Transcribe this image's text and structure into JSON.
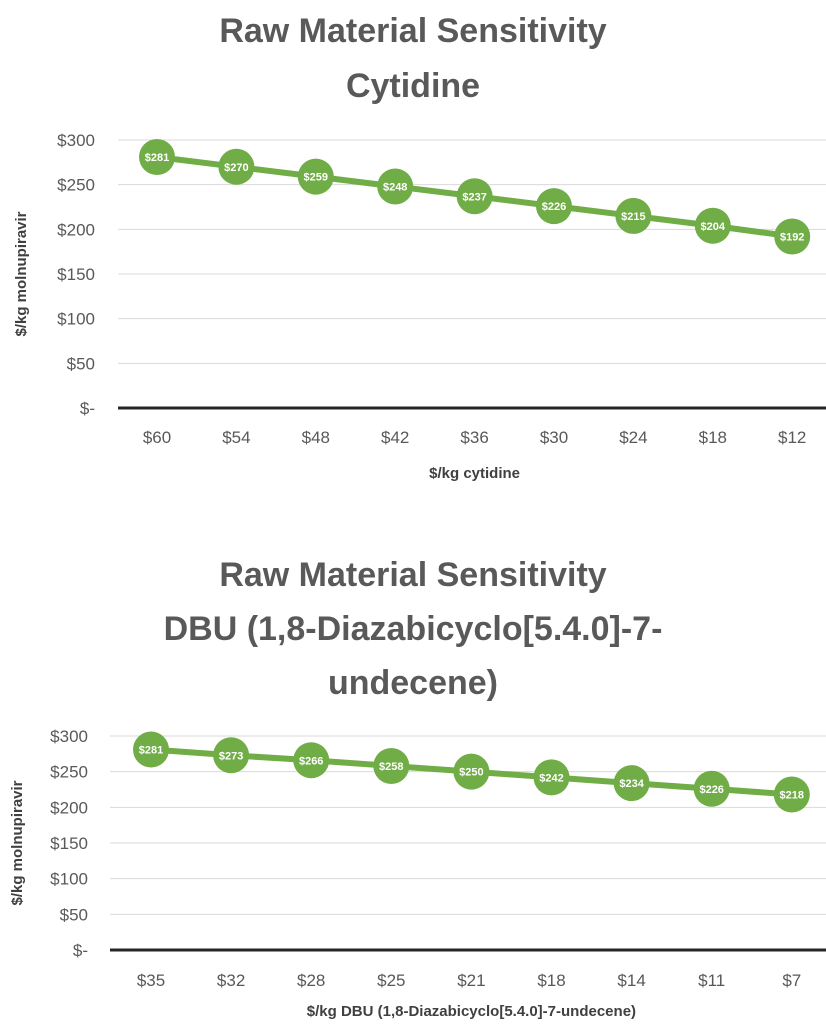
{
  "chart_data": [
    {
      "type": "line",
      "title": [
        "Raw Material Sensitivity",
        "Cytidine"
      ],
      "xlabel": "$/kg cytidine",
      "ylabel": "$/kg molnupiravir",
      "categories": [
        "$60",
        "$54",
        "$48",
        "$42",
        "$36",
        "$30",
        "$24",
        "$18",
        "$12"
      ],
      "values": [
        281,
        270,
        259,
        248,
        237,
        226,
        215,
        204,
        192
      ],
      "data_labels": [
        "$281",
        "$270",
        "$259",
        "$248",
        "$237",
        "$226",
        "$215",
        "$204",
        "$192"
      ],
      "ylim": [
        0,
        300
      ],
      "yticks": [
        {
          "value": 300,
          "label": "$300"
        },
        {
          "value": 250,
          "label": "$250"
        },
        {
          "value": 200,
          "label": "$200"
        },
        {
          "value": 150,
          "label": "$150"
        },
        {
          "value": 100,
          "label": "$100"
        },
        {
          "value": 50,
          "label": "$50"
        },
        {
          "value": 0,
          "label": "$-"
        }
      ],
      "grid": true,
      "color": "#70AD47"
    },
    {
      "type": "line",
      "title": [
        "Raw Material Sensitivity",
        "DBU (1,8-Diazabicyclo[5.4.0]-7-",
        "undecene)"
      ],
      "xlabel": "$/kg DBU (1,8-Diazabicyclo[5.4.0]-7-undecene)",
      "ylabel": "$/kg molnupiravir",
      "categories": [
        "$35",
        "$32",
        "$28",
        "$25",
        "$21",
        "$18",
        "$14",
        "$11",
        "$7"
      ],
      "values": [
        281,
        273,
        266,
        258,
        250,
        242,
        234,
        226,
        218
      ],
      "data_labels": [
        "$281",
        "$273",
        "$266",
        "$258",
        "$250",
        "$242",
        "$234",
        "$226",
        "$218"
      ],
      "ylim": [
        0,
        300
      ],
      "yticks": [
        {
          "value": 300,
          "label": "$300"
        },
        {
          "value": 250,
          "label": "$250"
        },
        {
          "value": 200,
          "label": "$200"
        },
        {
          "value": 150,
          "label": "$150"
        },
        {
          "value": 100,
          "label": "$100"
        },
        {
          "value": 50,
          "label": "$50"
        },
        {
          "value": 0,
          "label": "$-"
        }
      ],
      "grid": true,
      "color": "#70AD47"
    }
  ]
}
